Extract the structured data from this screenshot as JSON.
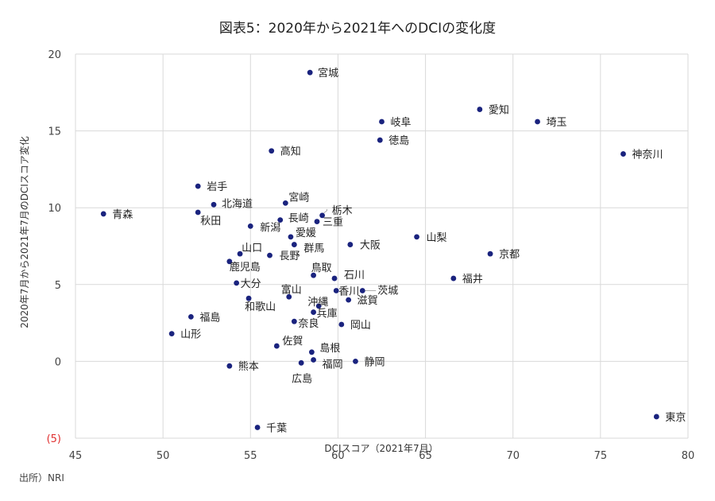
{
  "source_note": "出所）NRI",
  "chart_data": {
    "type": "scatter",
    "title": "図表5：2020年から2021年へのDCIの変化度",
    "xlabel": "DCIスコア（2021年7月）",
    "ylabel": "2020年7月から2021年7月のDCIスコア変化",
    "xlim": [
      45,
      80
    ],
    "ylim": [
      -5,
      20
    ],
    "x_ticks": [
      45,
      50,
      55,
      60,
      65,
      70,
      75,
      80
    ],
    "y_ticks": [
      -5,
      0,
      5,
      10,
      15,
      20
    ],
    "y_tick_labels": [
      "(5)",
      "0",
      "5",
      "10",
      "15",
      "20"
    ],
    "grid": true,
    "colors": {
      "point": "#1a237e",
      "grid": "#d9d9d9",
      "negative_tick": "#e03030"
    },
    "points": [
      {
        "name": "宮城",
        "x": 58.4,
        "y": 18.8
      },
      {
        "name": "愛知",
        "x": 68.1,
        "y": 16.4
      },
      {
        "name": "岐阜",
        "x": 62.5,
        "y": 15.6
      },
      {
        "name": "埼玉",
        "x": 71.4,
        "y": 15.6
      },
      {
        "name": "徳島",
        "x": 62.4,
        "y": 14.4
      },
      {
        "name": "神奈川",
        "x": 76.3,
        "y": 13.5
      },
      {
        "name": "高知",
        "x": 56.2,
        "y": 13.7
      },
      {
        "name": "岩手",
        "x": 52.0,
        "y": 11.4
      },
      {
        "name": "北海道",
        "x": 52.9,
        "y": 10.2
      },
      {
        "name": "宮崎",
        "x": 57.0,
        "y": 10.3
      },
      {
        "name": "栃木",
        "x": 59.1,
        "y": 9.5
      },
      {
        "name": "青森",
        "x": 46.6,
        "y": 9.6
      },
      {
        "name": "秋田",
        "x": 52.0,
        "y": 9.7
      },
      {
        "name": "長崎",
        "x": 56.7,
        "y": 9.2
      },
      {
        "name": "三重",
        "x": 58.8,
        "y": 9.1
      },
      {
        "name": "新潟",
        "x": 55.0,
        "y": 8.8
      },
      {
        "name": "愛媛",
        "x": 57.3,
        "y": 8.1
      },
      {
        "name": "山梨",
        "x": 64.5,
        "y": 8.1
      },
      {
        "name": "大阪",
        "x": 60.7,
        "y": 7.6
      },
      {
        "name": "群馬",
        "x": 57.5,
        "y": 7.6
      },
      {
        "name": "山口",
        "x": 54.4,
        "y": 7.0
      },
      {
        "name": "京都",
        "x": 68.7,
        "y": 7.0
      },
      {
        "name": "長野",
        "x": 56.1,
        "y": 6.9
      },
      {
        "name": "鹿児島",
        "x": 53.8,
        "y": 6.5
      },
      {
        "name": "鳥取",
        "x": 58.6,
        "y": 5.6
      },
      {
        "name": "石川",
        "x": 59.8,
        "y": 5.4
      },
      {
        "name": "福井",
        "x": 66.6,
        "y": 5.4
      },
      {
        "name": "大分",
        "x": 54.2,
        "y": 5.1
      },
      {
        "name": "富山",
        "x": 57.2,
        "y": 4.2
      },
      {
        "name": "香川",
        "x": 59.9,
        "y": 4.6
      },
      {
        "name": "茨城",
        "x": 61.4,
        "y": 4.6
      },
      {
        "name": "滋賀",
        "x": 60.6,
        "y": 4.0
      },
      {
        "name": "沖縄",
        "x": 58.9,
        "y": 3.6
      },
      {
        "name": "和歌山",
        "x": 54.9,
        "y": 4.1
      },
      {
        "name": "兵庫",
        "x": 58.6,
        "y": 3.2
      },
      {
        "name": "福島",
        "x": 51.6,
        "y": 2.9
      },
      {
        "name": "奈良",
        "x": 57.5,
        "y": 2.6
      },
      {
        "name": "岡山",
        "x": 60.2,
        "y": 2.4
      },
      {
        "name": "山形",
        "x": 50.5,
        "y": 1.8
      },
      {
        "name": "佐賀",
        "x": 56.5,
        "y": 1.0
      },
      {
        "name": "島根",
        "x": 58.5,
        "y": 0.6
      },
      {
        "name": "静岡",
        "x": 61.0,
        "y": 0.0
      },
      {
        "name": "福岡",
        "x": 58.6,
        "y": 0.1
      },
      {
        "name": "熊本",
        "x": 53.8,
        "y": -0.3
      },
      {
        "name": "広島",
        "x": 57.9,
        "y": -0.1
      },
      {
        "name": "千葉",
        "x": 55.4,
        "y": -4.3
      },
      {
        "name": "東京",
        "x": 78.2,
        "y": -3.6
      }
    ]
  }
}
